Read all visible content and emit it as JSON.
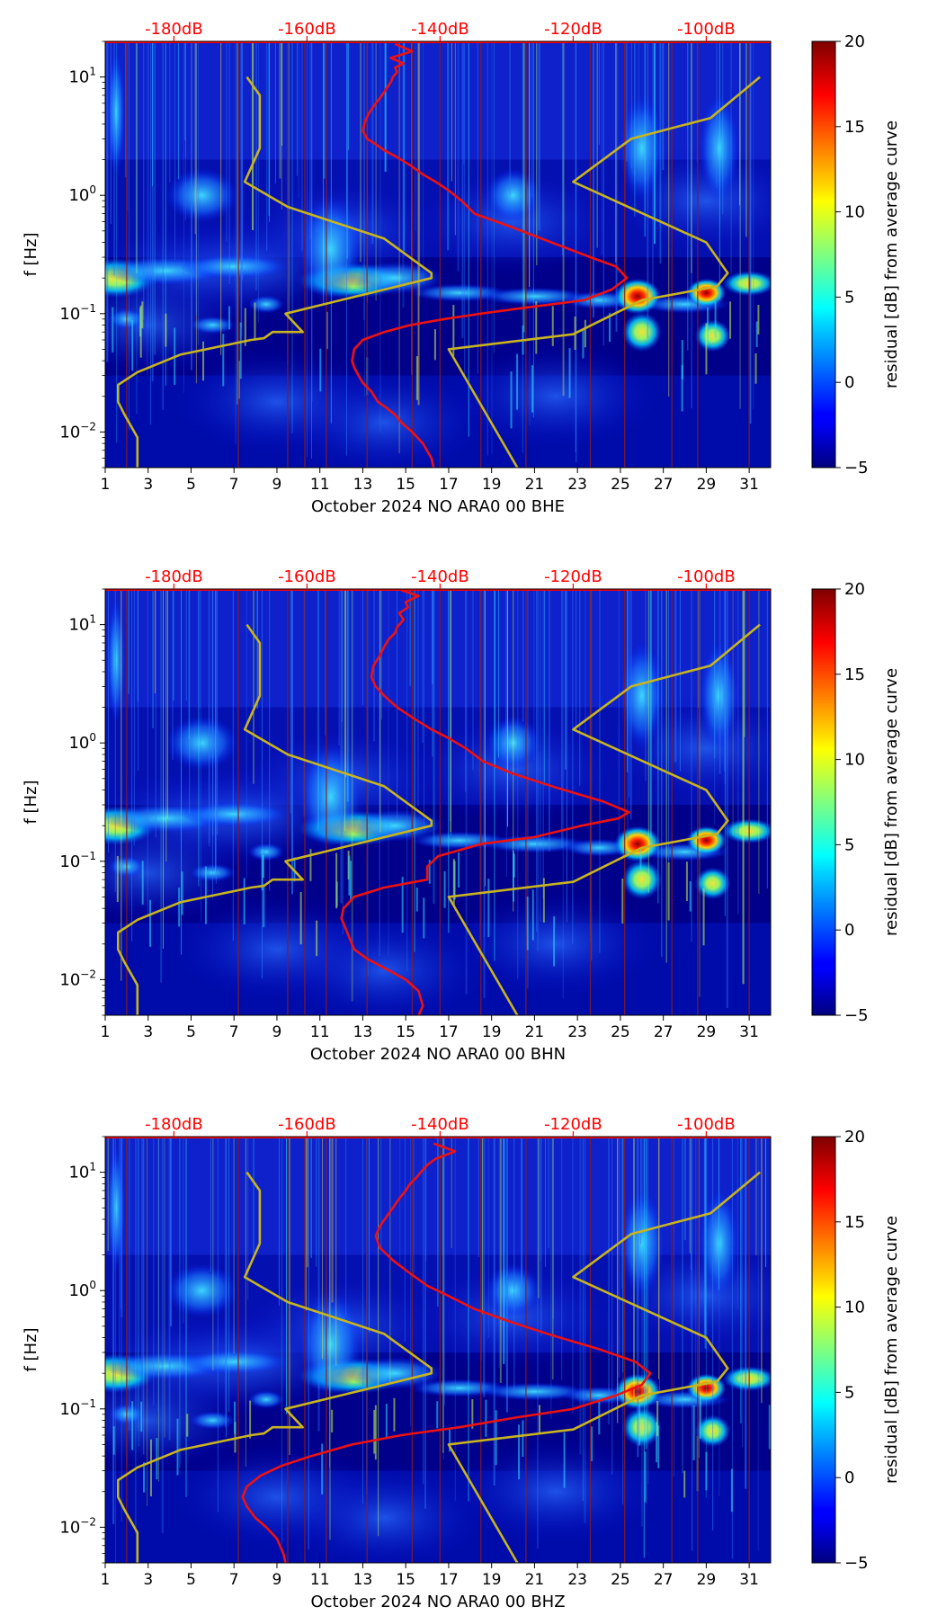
{
  "colorbar": {
    "label": "residual [dB] from average curve",
    "ticks": [
      -5,
      0,
      5,
      10,
      15,
      20
    ],
    "tick_labels": [
      "−5",
      "0",
      "5",
      "10",
      "15",
      "20"
    ],
    "range": [
      -5,
      20
    ]
  },
  "colors": {
    "background": "#00008b",
    "top_axis_text": "#ff0000",
    "noise_curve": "#ee1111",
    "model_curve": "#c8b41e",
    "vertical_lines": "#8b1a1a"
  },
  "chart_data": [
    {
      "type": "heatmap",
      "xlabel": "October 2024 NO ARA0 00 BHE",
      "ylabel": "f [Hz]",
      "yscale": "log",
      "xlim": [
        1,
        32
      ],
      "ylim": [
        0.005,
        20
      ],
      "x_ticks": [
        1,
        3,
        5,
        7,
        9,
        11,
        13,
        15,
        17,
        19,
        21,
        23,
        25,
        27,
        29,
        31
      ],
      "x_tick_labels": [
        "1",
        "3",
        "5",
        "7",
        "9",
        "11",
        "13",
        "15",
        "17",
        "19",
        "21",
        "23",
        "25",
        "27",
        "29",
        "31"
      ],
      "y_ticks": [
        0.01,
        0.1,
        1,
        10
      ],
      "top_axis_ticks": [
        4.2,
        10.4,
        16.6,
        22.8,
        29.0
      ],
      "top_axis_labels": [
        "-180dB",
        "-160dB",
        "-140dB",
        "-120dB",
        "-100dB"
      ],
      "grid": false,
      "series": [
        {
          "x": [
            16.3,
            16.2,
            15.8,
            15.3,
            14.8,
            14.5,
            14.1,
            13.7,
            13.4,
            13.0,
            12.8,
            12.6,
            12.5,
            12.6,
            13.0,
            14.0,
            15.2,
            16.8,
            18.5,
            20.2,
            21.8,
            23.3,
            24.6,
            25.3,
            24.8,
            23.6,
            21.8,
            19.8,
            18.2,
            17.6,
            17.0,
            16.4,
            15.8,
            15.2,
            14.6,
            14.0,
            13.6,
            13.2,
            13.0,
            13.1,
            13.3,
            13.6,
            13.9,
            14.1,
            14.3,
            14.4,
            14.6,
            14.5,
            14.9,
            14.3,
            15.3,
            14.5
          ],
          "y": [
            0.005,
            0.006,
            0.008,
            0.01,
            0.012,
            0.014,
            0.016,
            0.018,
            0.022,
            0.026,
            0.03,
            0.035,
            0.04,
            0.05,
            0.06,
            0.07,
            0.08,
            0.09,
            0.1,
            0.11,
            0.12,
            0.13,
            0.16,
            0.2,
            0.25,
            0.3,
            0.4,
            0.55,
            0.7,
            0.9,
            1.1,
            1.3,
            1.5,
            1.8,
            2.1,
            2.4,
            2.7,
            3.0,
            3.5,
            4.2,
            5.0,
            6.0,
            7.0,
            8.0,
            9.0,
            10.0,
            11.0,
            12.0,
            13.0,
            14.5,
            16.5,
            19.0
          ]
        },
        {
          "x": [
            2.5,
            2.5,
            1.9,
            1.6,
            1.6,
            1.6,
            2.5,
            4.5,
            7.8,
            8.4,
            8.8,
            10.2,
            9.4,
            16.2,
            16.2,
            14.0,
            9.5,
            7.5,
            8.2,
            8.2,
            7.6
          ],
          "y": [
            0.005,
            0.009,
            0.014,
            0.018,
            0.022,
            0.025,
            0.032,
            0.045,
            0.06,
            0.062,
            0.07,
            0.07,
            0.1,
            0.2,
            0.22,
            0.43,
            0.8,
            1.3,
            2.5,
            7.0,
            10.0
          ]
        },
        {
          "x": [
            20.2,
            17.0,
            22.8,
            26.0,
            29.5,
            30.0,
            29.0,
            22.8,
            25.5,
            29.2,
            31.5
          ],
          "y": [
            0.005,
            0.05,
            0.067,
            0.13,
            0.17,
            0.22,
            0.4,
            1.3,
            3.0,
            4.5,
            10.0
          ]
        }
      ]
    },
    {
      "type": "heatmap",
      "xlabel": "October 2024 NO ARA0 00 BHN",
      "ylabel": "f [Hz]",
      "yscale": "log",
      "xlim": [
        1,
        32
      ],
      "ylim": [
        0.005,
        20
      ],
      "x_ticks": [
        1,
        3,
        5,
        7,
        9,
        11,
        13,
        15,
        17,
        19,
        21,
        23,
        25,
        27,
        29,
        31
      ],
      "x_tick_labels": [
        "1",
        "3",
        "5",
        "7",
        "9",
        "11",
        "13",
        "15",
        "17",
        "19",
        "21",
        "23",
        "25",
        "27",
        "29",
        "31"
      ],
      "y_ticks": [
        0.01,
        0.1,
        1,
        10
      ],
      "top_axis_ticks": [
        4.2,
        10.4,
        16.6,
        22.8,
        29.0
      ],
      "top_axis_labels": [
        "-180dB",
        "-160dB",
        "-140dB",
        "-120dB",
        "-100dB"
      ],
      "grid": false,
      "series": [
        {
          "x": [
            15.6,
            15.8,
            15.6,
            15.0,
            14.2,
            13.2,
            12.6,
            12.4,
            12.2,
            12.0,
            12.1,
            12.6,
            14.0,
            16.0,
            16.0,
            16.5,
            18.5,
            21.0,
            23.2,
            24.9,
            25.4,
            24.2,
            22.0,
            20.0,
            18.6,
            17.8,
            17.0,
            16.2,
            15.4,
            14.6,
            14.0,
            13.6,
            13.4,
            13.5,
            13.8,
            14.0,
            14.2,
            14.5,
            14.6,
            14.9,
            14.7,
            15.1,
            15.0,
            15.6,
            14.8
          ],
          "y": [
            0.005,
            0.006,
            0.008,
            0.01,
            0.012,
            0.015,
            0.018,
            0.022,
            0.027,
            0.033,
            0.04,
            0.05,
            0.06,
            0.07,
            0.09,
            0.11,
            0.14,
            0.16,
            0.2,
            0.23,
            0.26,
            0.32,
            0.42,
            0.55,
            0.7,
            0.9,
            1.1,
            1.3,
            1.6,
            2.0,
            2.5,
            3.0,
            3.6,
            4.5,
            5.5,
            6.5,
            7.5,
            8.5,
            9.5,
            11.0,
            12.5,
            14.0,
            15.5,
            17.5,
            19.5
          ]
        },
        {
          "x": [
            2.5,
            2.5,
            1.9,
            1.6,
            1.6,
            1.6,
            2.5,
            4.5,
            7.8,
            8.4,
            8.8,
            10.2,
            9.4,
            16.2,
            16.2,
            14.0,
            9.5,
            7.5,
            8.2,
            8.2,
            7.6
          ],
          "y": [
            0.005,
            0.009,
            0.014,
            0.018,
            0.022,
            0.025,
            0.032,
            0.045,
            0.06,
            0.062,
            0.07,
            0.07,
            0.1,
            0.2,
            0.22,
            0.43,
            0.8,
            1.3,
            2.5,
            7.0,
            10.0
          ]
        },
        {
          "x": [
            20.2,
            17.0,
            22.8,
            26.0,
            29.5,
            30.0,
            29.0,
            22.8,
            25.5,
            29.2,
            31.5
          ],
          "y": [
            0.005,
            0.05,
            0.067,
            0.13,
            0.17,
            0.22,
            0.4,
            1.3,
            3.0,
            4.5,
            10.0
          ]
        }
      ]
    },
    {
      "type": "heatmap",
      "xlabel": "October 2024 NO ARA0 00 BHZ",
      "ylabel": "f [Hz]",
      "yscale": "log",
      "xlim": [
        1,
        32
      ],
      "ylim": [
        0.005,
        20
      ],
      "x_ticks": [
        1,
        3,
        5,
        7,
        9,
        11,
        13,
        15,
        17,
        19,
        21,
        23,
        25,
        27,
        29,
        31
      ],
      "x_tick_labels": [
        "1",
        "3",
        "5",
        "7",
        "9",
        "11",
        "13",
        "15",
        "17",
        "19",
        "21",
        "23",
        "25",
        "27",
        "29",
        "31"
      ],
      "y_ticks": [
        0.01,
        0.1,
        1,
        10
      ],
      "top_axis_ticks": [
        4.2,
        10.4,
        16.6,
        22.8,
        29.0
      ],
      "top_axis_labels": [
        "-180dB",
        "-160dB",
        "-140dB",
        "-120dB",
        "-100dB"
      ],
      "grid": false,
      "series": [
        {
          "x": [
            9.4,
            9.3,
            9.0,
            8.5,
            8.0,
            7.6,
            7.4,
            7.6,
            8.2,
            9.2,
            10.6,
            12.5,
            14.8,
            17.5,
            20.2,
            22.8,
            24.8,
            26.0,
            26.4,
            25.7,
            24.0,
            21.8,
            19.8,
            18.2,
            17.0,
            16.0,
            15.2,
            14.4,
            13.8,
            13.6,
            13.8,
            14.1,
            14.4,
            14.7,
            15.0,
            15.2,
            15.5,
            15.7,
            16.0,
            16.4,
            17.3,
            16.3
          ],
          "y": [
            0.005,
            0.006,
            0.008,
            0.01,
            0.012,
            0.015,
            0.018,
            0.022,
            0.027,
            0.033,
            0.04,
            0.05,
            0.06,
            0.07,
            0.085,
            0.1,
            0.13,
            0.16,
            0.2,
            0.25,
            0.32,
            0.42,
            0.55,
            0.7,
            0.9,
            1.1,
            1.4,
            1.8,
            2.3,
            2.9,
            3.5,
            4.2,
            5.0,
            6.0,
            7.0,
            8.0,
            9.0,
            10.0,
            11.5,
            13.0,
            15.0,
            17.5
          ]
        },
        {
          "x": [
            2.5,
            2.5,
            1.9,
            1.6,
            1.6,
            1.6,
            2.5,
            4.5,
            7.8,
            8.4,
            8.8,
            10.2,
            9.4,
            16.2,
            16.2,
            14.0,
            9.5,
            7.5,
            8.2,
            8.2,
            7.6
          ],
          "y": [
            0.005,
            0.009,
            0.014,
            0.018,
            0.022,
            0.025,
            0.032,
            0.045,
            0.06,
            0.062,
            0.07,
            0.07,
            0.1,
            0.2,
            0.22,
            0.43,
            0.8,
            1.3,
            2.5,
            7.0,
            10.0
          ]
        },
        {
          "x": [
            20.2,
            17.0,
            22.8,
            26.0,
            29.5,
            30.0,
            29.0,
            22.8,
            25.5,
            29.2,
            31.5
          ],
          "y": [
            0.005,
            0.05,
            0.067,
            0.13,
            0.17,
            0.22,
            0.4,
            1.3,
            3.0,
            4.5,
            10.0
          ]
        }
      ]
    }
  ]
}
